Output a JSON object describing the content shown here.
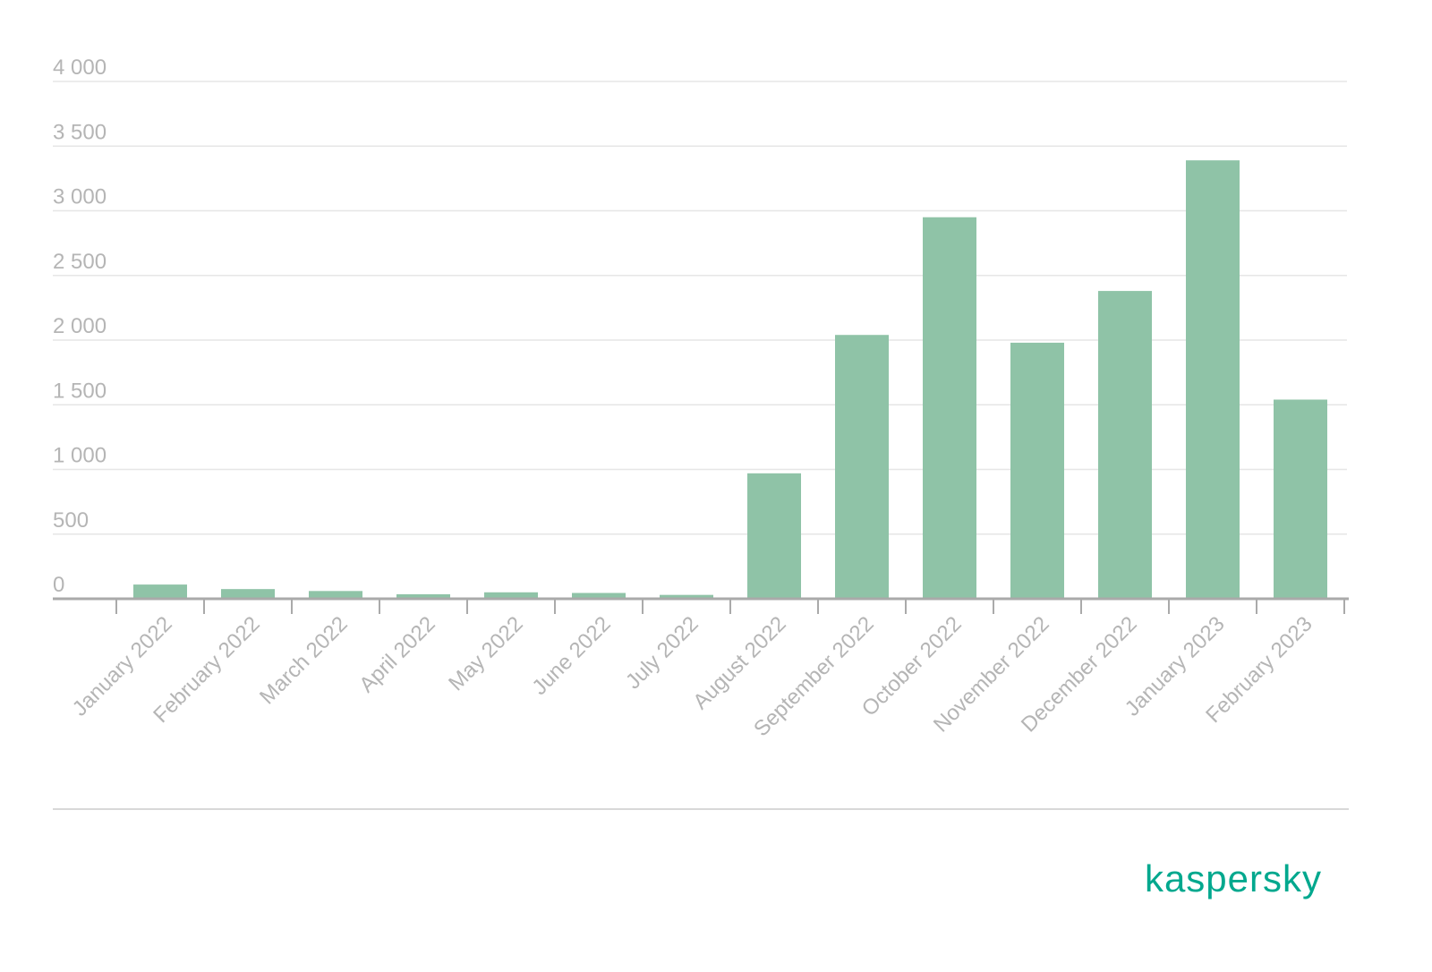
{
  "chart_data": {
    "type": "bar",
    "categories": [
      "January 2022",
      "February 2022",
      "March 2022",
      "April 2022",
      "May 2022",
      "June 2022",
      "July 2022",
      "August 2022",
      "September 2022",
      "October 2022",
      "November 2022",
      "December 2022",
      "January 2023",
      "February 2023"
    ],
    "values": [
      110,
      75,
      60,
      35,
      50,
      45,
      30,
      970,
      2040,
      2950,
      1980,
      2380,
      3390,
      1540
    ],
    "color": "#8fc3a7",
    "ylim": [
      0,
      4000
    ],
    "yticks": [
      0,
      500,
      {
        "value": 1000,
        "label": "1 000"
      },
      {
        "value": 1500,
        "label": "1 500"
      },
      {
        "value": 2000,
        "label": "2 000"
      },
      {
        "value": 2500,
        "label": "2 500"
      },
      {
        "value": 3000,
        "label": "3 000"
      },
      {
        "value": 3500,
        "label": "3 500"
      },
      {
        "value": 4000,
        "label": "4 000"
      }
    ],
    "grid": true
  },
  "logo": "kaspersky"
}
